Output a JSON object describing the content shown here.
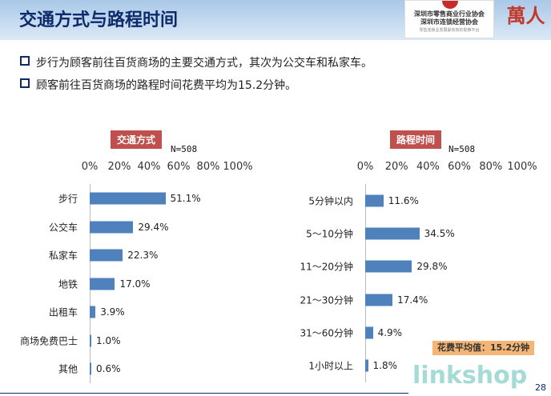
{
  "header": {
    "title": "交通方式与路程时间",
    "logo_line1": "深圳市零售商业行业协会",
    "logo_line2": "深圳市连锁经营协会",
    "logo_sub": "零售连锁业发展最有效的助推平台",
    "logo2": "萬人"
  },
  "bullets": [
    "步行为顾客前往百货商场的主要交通方式，其次为公交车和私家车。",
    "顾客前往百货商场的路程时间花费平均为15.2分钟。"
  ],
  "chart_data": [
    {
      "type": "bar",
      "orientation": "horizontal",
      "title": "交通方式",
      "note": "N=508",
      "ticks": [
        "0%",
        "20%",
        "40%",
        "60%",
        "80%",
        "100%"
      ],
      "xlim": [
        0,
        100
      ],
      "categories": [
        "步行",
        "公交车",
        "私家车",
        "地铁",
        "出租车",
        "商场免费巴士",
        "其他"
      ],
      "values": [
        51.1,
        29.4,
        22.3,
        17.0,
        3.9,
        1.0,
        0.6
      ],
      "labels": [
        "51.1%",
        "29.4%",
        "22.3%",
        "17.0%",
        "3.9%",
        "1.0%",
        "0.6%"
      ]
    },
    {
      "type": "bar",
      "orientation": "horizontal",
      "title": "路程时间",
      "note": "N=508",
      "ticks": [
        "0%",
        "20%",
        "40%",
        "60%",
        "80%",
        "100%"
      ],
      "xlim": [
        0,
        100
      ],
      "categories": [
        "5分钟以内",
        "5～10分钟",
        "11～20分钟",
        "21～30分钟",
        "31～60分钟",
        "1小时以上"
      ],
      "values": [
        11.6,
        34.5,
        29.8,
        17.4,
        4.9,
        1.8
      ],
      "labels": [
        "11.6%",
        "34.5%",
        "29.8%",
        "17.4%",
        "4.9%",
        "1.8%"
      ],
      "annotation": "花费平均值：15.2分钟"
    }
  ],
  "watermark": "linkshop",
  "page_number": "28",
  "colors": {
    "bar": "#4f81bd",
    "tag": "#c0504d",
    "title": "#0d2a6b"
  }
}
